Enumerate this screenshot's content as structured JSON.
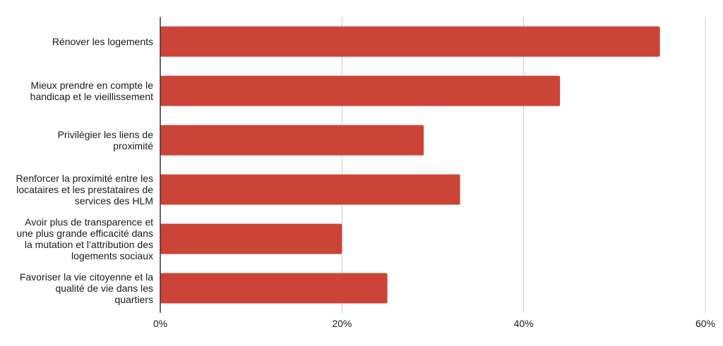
{
  "chart_data": {
    "type": "bar",
    "orientation": "horizontal",
    "categories": [
      [
        "Rénover les logements"
      ],
      [
        "Mieux prendre en compte le",
        "handicap et le vieillissement"
      ],
      [
        "Privilégier les liens de",
        "proximité"
      ],
      [
        "Renforcer la proximité entre les",
        "locataires et les prestataires de",
        "services des HLM"
      ],
      [
        "Avoir plus de transparence et",
        "une plus grande efficacité dans",
        "la mutation et l’attribution des",
        "logements sociaux"
      ],
      [
        "Favoriser la vie citoyenne et la",
        "qualité de vie dans les",
        "quartiers"
      ]
    ],
    "values": [
      55,
      44,
      29,
      33,
      20,
      25
    ],
    "xlim": [
      0,
      60
    ],
    "xticks": [
      0,
      20,
      40,
      60
    ],
    "xtick_labels": [
      "0%",
      "20%",
      "40%",
      "60%"
    ],
    "grid": "vertical",
    "bar_color": "#cc4437",
    "title": "",
    "xlabel": "",
    "ylabel": ""
  }
}
